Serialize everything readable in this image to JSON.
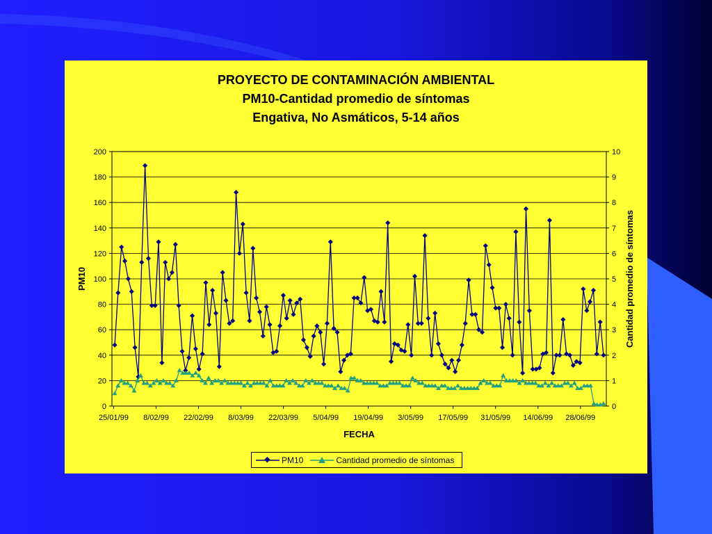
{
  "colors": {
    "background_blue": "#1f1fff",
    "panel_yellow": "#ffff33",
    "pm10_series": "#000080",
    "symptoms_series": "#20a080"
  },
  "chart_data": {
    "type": "line",
    "title_lines": [
      "PROYECTO DE CONTAMINACIÓN AMBIENTAL",
      "PM10-Cantidad promedio de síntomas",
      "Engativa, No Asmáticos, 5-14 años"
    ],
    "xlabel": "FECHA",
    "ylabel": "PM10",
    "y2label": "Cantidad promedio de síntomas",
    "ylim": [
      0,
      200
    ],
    "yticks": [
      "0",
      "20",
      "40",
      "60",
      "80",
      "100",
      "120",
      "140",
      "160",
      "180",
      "200"
    ],
    "y2lim": [
      0,
      10
    ],
    "y2ticks": [
      "0",
      "1",
      "2",
      "3",
      "4",
      "5",
      "6",
      "7",
      "8",
      "9",
      "10"
    ],
    "xticks": [
      "25/01/99",
      "8/02/99",
      "22/02/99",
      "8/03/99",
      "22/03/99",
      "5/04/99",
      "19/04/99",
      "3/05/99",
      "17/05/99",
      "31/05/99",
      "14/06/99",
      "28/06/99"
    ],
    "grid": true,
    "legend_position": "bottom",
    "series": [
      {
        "name": "PM10",
        "axis": "left",
        "values": [
          48,
          89,
          125,
          114,
          100,
          90,
          46,
          23,
          113,
          189,
          116,
          79,
          79,
          129,
          34,
          113,
          100,
          105,
          127,
          79,
          43,
          28,
          38,
          71,
          45,
          29,
          41,
          97,
          64,
          91,
          73,
          31,
          105,
          83,
          65,
          67,
          168,
          120,
          143,
          89,
          67,
          124,
          85,
          74,
          55,
          78,
          64,
          42,
          43,
          63,
          87,
          69,
          83,
          72,
          81,
          84,
          52,
          46,
          39,
          55,
          63,
          58,
          33,
          65,
          129,
          61,
          58,
          27,
          36,
          40,
          41,
          85,
          85,
          81,
          101,
          75,
          76,
          67,
          66,
          90,
          66,
          144,
          35,
          49,
          48,
          44,
          43,
          64,
          40,
          102,
          65,
          65,
          134,
          69,
          40,
          73,
          49,
          40,
          33,
          30,
          36,
          27,
          36,
          48,
          65,
          99,
          72,
          72,
          60,
          58,
          126,
          111,
          93,
          77,
          77,
          46,
          80,
          69,
          40,
          137,
          66,
          26,
          155,
          75,
          29,
          29,
          30,
          41,
          42,
          146,
          26,
          40,
          40,
          68,
          41,
          40,
          32,
          35,
          34,
          92,
          75,
          82,
          91,
          41,
          66,
          40
        ]
      },
      {
        "name": "Cantidad promedio de síntomas",
        "axis": "right",
        "values": [
          0.5,
          0.8,
          1.0,
          0.9,
          0.9,
          0.8,
          0.6,
          1.0,
          1.2,
          0.9,
          0.9,
          0.8,
          0.9,
          1.0,
          0.9,
          1.0,
          0.9,
          0.9,
          0.8,
          1.0,
          1.4,
          1.3,
          1.3,
          1.3,
          1.2,
          1.3,
          1.2,
          1.0,
          0.9,
          1.1,
          0.9,
          1.0,
          1.0,
          0.9,
          1.0,
          0.9,
          0.9,
          0.9,
          0.9,
          0.9,
          0.8,
          0.9,
          0.8,
          0.9,
          0.9,
          0.9,
          0.9,
          0.8,
          1.0,
          0.8,
          0.8,
          0.8,
          0.8,
          1.0,
          0.9,
          1.0,
          0.9,
          0.8,
          0.8,
          1.0,
          0.9,
          1.0,
          0.9,
          0.9,
          0.9,
          0.8,
          0.8,
          0.8,
          0.7,
          0.8,
          0.7,
          0.7,
          0.6,
          1.1,
          1.1,
          1.0,
          1.0,
          0.9,
          0.9,
          0.9,
          0.9,
          0.9,
          0.8,
          0.8,
          0.8,
          0.9,
          0.9,
          0.9,
          0.9,
          0.8,
          0.8,
          0.8,
          1.1,
          1.0,
          0.9,
          0.9,
          0.8,
          0.8,
          0.8,
          0.8,
          0.7,
          0.8,
          0.8,
          0.7,
          0.7,
          0.7,
          0.8,
          0.7,
          0.7,
          0.7,
          0.7,
          0.7,
          0.7,
          0.9,
          1.0,
          0.9,
          0.9,
          0.8,
          0.8,
          0.8,
          1.2,
          1.0,
          1.0,
          1.0,
          1.0,
          0.9,
          1.0,
          0.9,
          0.9,
          0.9,
          0.9,
          0.8,
          0.8,
          0.9,
          0.8,
          0.9,
          0.8,
          0.8,
          0.8,
          0.9,
          0.9,
          0.8,
          0.9,
          0.7,
          0.7,
          0.8,
          0.8,
          0.8,
          0.1,
          0.05,
          0.05,
          0.1
        ]
      }
    ]
  }
}
